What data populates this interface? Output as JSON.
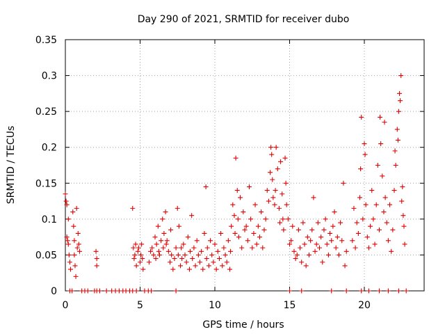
{
  "chart_data": {
    "type": "scatter",
    "title": "Day 290 of 2021, SRMTID for receiver dubo",
    "xlabel": "GPS time / hours",
    "ylabel": "SRMTID / TECUs",
    "xlim": [
      0,
      24
    ],
    "ylim": [
      0,
      0.35
    ],
    "xticks": [
      0,
      5,
      10,
      15,
      20
    ],
    "xtick_labels": [
      "0",
      "5",
      "10",
      "15",
      "20"
    ],
    "yticks": [
      0,
      0.05,
      0.1,
      0.15,
      0.2,
      0.25,
      0.3,
      0.35
    ],
    "ytick_labels": [
      "0",
      "0.05",
      "0.1",
      "0.15",
      "0.2",
      "0.25",
      "0.3",
      "0.35"
    ],
    "grid": true,
    "legend": "none",
    "marker": "+",
    "series": [
      {
        "name": "SRMTID",
        "color": "#e00000",
        "points": [
          [
            0.0,
            0.135
          ],
          [
            0.05,
            0.125
          ],
          [
            0.1,
            0.12
          ],
          [
            0.1,
            0.075
          ],
          [
            0.15,
            0.07
          ],
          [
            0.2,
            0.065
          ],
          [
            0.2,
            0.1
          ],
          [
            0.25,
            0.05
          ],
          [
            0.3,
            0.04
          ],
          [
            0.35,
            0.03
          ],
          [
            0.5,
            0.11
          ],
          [
            0.55,
            0.09
          ],
          [
            0.6,
            0.07
          ],
          [
            0.6,
            0.05
          ],
          [
            0.65,
            0.035
          ],
          [
            0.7,
            0.02
          ],
          [
            0.75,
            0.115
          ],
          [
            0.8,
            0.06
          ],
          [
            0.85,
            0.08
          ],
          [
            0.9,
            0.065
          ],
          [
            0.95,
            0.055
          ],
          [
            2.05,
            0.055
          ],
          [
            2.1,
            0.035
          ],
          [
            2.1,
            0.045
          ],
          [
            4.5,
            0.115
          ],
          [
            4.55,
            0.06
          ],
          [
            4.6,
            0.045
          ],
          [
            4.65,
            0.05
          ],
          [
            4.7,
            0.065
          ],
          [
            4.75,
            0.035
          ],
          [
            4.85,
            0.055
          ],
          [
            4.9,
            0.06
          ],
          [
            5.0,
            0.04
          ],
          [
            5.05,
            0.05
          ],
          [
            5.1,
            0.065
          ],
          [
            5.15,
            0.045
          ],
          [
            5.2,
            0.03
          ],
          [
            5.6,
            0.04
          ],
          [
            5.7,
            0.055
          ],
          [
            5.8,
            0.06
          ],
          [
            5.9,
            0.05
          ],
          [
            6.0,
            0.075
          ],
          [
            6.05,
            0.045
          ],
          [
            6.1,
            0.065
          ],
          [
            6.2,
            0.09
          ],
          [
            6.25,
            0.055
          ],
          [
            6.3,
            0.05
          ],
          [
            6.4,
            0.07
          ],
          [
            6.5,
            0.1
          ],
          [
            6.55,
            0.06
          ],
          [
            6.6,
            0.08
          ],
          [
            6.7,
            0.11
          ],
          [
            6.75,
            0.065
          ],
          [
            6.8,
            0.07
          ],
          [
            6.9,
            0.055
          ],
          [
            7.0,
            0.04
          ],
          [
            7.05,
            0.085
          ],
          [
            7.1,
            0.05
          ],
          [
            7.2,
            0.03
          ],
          [
            7.3,
            0.045
          ],
          [
            7.4,
            0.06
          ],
          [
            7.5,
            0.115
          ],
          [
            7.55,
            0.05
          ],
          [
            7.6,
            0.09
          ],
          [
            7.7,
            0.035
          ],
          [
            7.75,
            0.06
          ],
          [
            7.8,
            0.045
          ],
          [
            7.9,
            0.065
          ],
          [
            8.0,
            0.05
          ],
          [
            8.1,
            0.04
          ],
          [
            8.2,
            0.075
          ],
          [
            8.3,
            0.03
          ],
          [
            8.35,
            0.055
          ],
          [
            8.45,
            0.105
          ],
          [
            8.5,
            0.045
          ],
          [
            8.6,
            0.06
          ],
          [
            8.7,
            0.035
          ],
          [
            8.8,
            0.07
          ],
          [
            8.9,
            0.05
          ],
          [
            9.0,
            0.04
          ],
          [
            9.1,
            0.055
          ],
          [
            9.2,
            0.03
          ],
          [
            9.3,
            0.08
          ],
          [
            9.4,
            0.145
          ],
          [
            9.45,
            0.045
          ],
          [
            9.5,
            0.06
          ],
          [
            9.6,
            0.035
          ],
          [
            9.7,
            0.07
          ],
          [
            9.8,
            0.05
          ],
          [
            9.9,
            0.04
          ],
          [
            10.0,
            0.065
          ],
          [
            10.1,
            0.03
          ],
          [
            10.2,
            0.055
          ],
          [
            10.3,
            0.045
          ],
          [
            10.4,
            0.08
          ],
          [
            10.5,
            0.035
          ],
          [
            10.6,
            0.06
          ],
          [
            10.7,
            0.05
          ],
          [
            10.8,
            0.04
          ],
          [
            10.9,
            0.07
          ],
          [
            11.0,
            0.03
          ],
          [
            11.05,
            0.055
          ],
          [
            11.1,
            0.09
          ],
          [
            11.2,
            0.12
          ],
          [
            11.3,
            0.105
          ],
          [
            11.35,
            0.08
          ],
          [
            11.4,
            0.185
          ],
          [
            11.5,
            0.14
          ],
          [
            11.55,
            0.1
          ],
          [
            11.6,
            0.075
          ],
          [
            11.7,
            0.13
          ],
          [
            11.8,
            0.06
          ],
          [
            11.9,
            0.11
          ],
          [
            12.0,
            0.085
          ],
          [
            12.1,
            0.09
          ],
          [
            12.2,
            0.07
          ],
          [
            12.3,
            0.145
          ],
          [
            12.4,
            0.1
          ],
          [
            12.5,
            0.06
          ],
          [
            12.6,
            0.08
          ],
          [
            12.7,
            0.12
          ],
          [
            12.8,
            0.065
          ],
          [
            12.9,
            0.09
          ],
          [
            13.0,
            0.075
          ],
          [
            13.1,
            0.11
          ],
          [
            13.2,
            0.06
          ],
          [
            13.3,
            0.085
          ],
          [
            13.4,
            0.1
          ],
          [
            13.5,
            0.14
          ],
          [
            13.6,
            0.125
          ],
          [
            13.7,
            0.165
          ],
          [
            13.75,
            0.2
          ],
          [
            13.8,
            0.19
          ],
          [
            13.85,
            0.155
          ],
          [
            13.9,
            0.13
          ],
          [
            14.0,
            0.12
          ],
          [
            14.05,
            0.14
          ],
          [
            14.1,
            0.2
          ],
          [
            14.2,
            0.17
          ],
          [
            14.3,
            0.115
          ],
          [
            14.35,
            0.095
          ],
          [
            14.4,
            0.18
          ],
          [
            14.5,
            0.135
          ],
          [
            14.55,
            0.1
          ],
          [
            14.6,
            0.085
          ],
          [
            14.7,
            0.185
          ],
          [
            14.75,
            0.15
          ],
          [
            14.8,
            0.12
          ],
          [
            14.9,
            0.1
          ],
          [
            15.0,
            0.065
          ],
          [
            15.1,
            0.07
          ],
          [
            15.2,
            0.09
          ],
          [
            15.3,
            0.055
          ],
          [
            15.4,
            0.045
          ],
          [
            15.5,
            0.05
          ],
          [
            15.6,
            0.085
          ],
          [
            15.7,
            0.06
          ],
          [
            15.8,
            0.04
          ],
          [
            15.9,
            0.095
          ],
          [
            16.0,
            0.065
          ],
          [
            16.1,
            0.035
          ],
          [
            16.2,
            0.075
          ],
          [
            16.3,
            0.05
          ],
          [
            16.4,
            0.07
          ],
          [
            16.5,
            0.085
          ],
          [
            16.6,
            0.13
          ],
          [
            16.7,
            0.055
          ],
          [
            16.8,
            0.065
          ],
          [
            16.9,
            0.095
          ],
          [
            17.0,
            0.06
          ],
          [
            17.1,
            0.075
          ],
          [
            17.2,
            0.04
          ],
          [
            17.3,
            0.085
          ],
          [
            17.4,
            0.1
          ],
          [
            17.5,
            0.065
          ],
          [
            17.6,
            0.05
          ],
          [
            17.7,
            0.08
          ],
          [
            17.8,
            0.07
          ],
          [
            17.9,
            0.09
          ],
          [
            18.0,
            0.11
          ],
          [
            18.1,
            0.06
          ],
          [
            18.2,
            0.075
          ],
          [
            18.3,
            0.05
          ],
          [
            18.4,
            0.095
          ],
          [
            18.5,
            0.07
          ],
          [
            18.6,
            0.15
          ],
          [
            18.7,
            0.035
          ],
          [
            18.8,
            0.055
          ],
          [
            19.2,
            0.07
          ],
          [
            19.3,
            0.115
          ],
          [
            19.4,
            0.06
          ],
          [
            19.5,
            0.095
          ],
          [
            19.6,
            0.08
          ],
          [
            19.7,
            0.13
          ],
          [
            19.75,
            0.17
          ],
          [
            19.8,
            0.242
          ],
          [
            19.9,
            0.1
          ],
          [
            20.0,
            0.205
          ],
          [
            20.05,
            0.19
          ],
          [
            20.1,
            0.12
          ],
          [
            20.2,
            0.075
          ],
          [
            20.3,
            0.06
          ],
          [
            20.4,
            0.09
          ],
          [
            20.5,
            0.14
          ],
          [
            20.6,
            0.1
          ],
          [
            20.7,
            0.065
          ],
          [
            20.8,
            0.12
          ],
          [
            20.9,
            0.175
          ],
          [
            21.0,
            0.085
          ],
          [
            21.05,
            0.242
          ],
          [
            21.1,
            0.205
          ],
          [
            21.2,
            0.16
          ],
          [
            21.3,
            0.11
          ],
          [
            21.35,
            0.235
          ],
          [
            21.4,
            0.13
          ],
          [
            21.5,
            0.095
          ],
          [
            21.6,
            0.07
          ],
          [
            21.7,
            0.12
          ],
          [
            21.8,
            0.055
          ],
          [
            21.9,
            0.085
          ],
          [
            22.0,
            0.14
          ],
          [
            22.05,
            0.195
          ],
          [
            22.1,
            0.175
          ],
          [
            22.2,
            0.225
          ],
          [
            22.25,
            0.21
          ],
          [
            22.3,
            0.25
          ],
          [
            22.35,
            0.275
          ],
          [
            22.4,
            0.265
          ],
          [
            22.45,
            0.3
          ],
          [
            22.5,
            0.125
          ],
          [
            22.55,
            0.145
          ],
          [
            22.6,
            0.105
          ],
          [
            22.65,
            0.09
          ],
          [
            22.7,
            0.065
          ],
          [
            0.3,
            0
          ],
          [
            0.45,
            0
          ],
          [
            1.1,
            0
          ],
          [
            1.3,
            0
          ],
          [
            1.5,
            0
          ],
          [
            1.95,
            0
          ],
          [
            2.1,
            0
          ],
          [
            2.3,
            0
          ],
          [
            2.75,
            0
          ],
          [
            3.1,
            0
          ],
          [
            3.35,
            0
          ],
          [
            3.6,
            0
          ],
          [
            3.85,
            0
          ],
          [
            4.05,
            0
          ],
          [
            4.3,
            0
          ],
          [
            4.5,
            0
          ],
          [
            4.75,
            0
          ],
          [
            5.3,
            0
          ],
          [
            5.55,
            0
          ],
          [
            5.75,
            0
          ],
          [
            7.4,
            0
          ],
          [
            15.0,
            0
          ],
          [
            15.8,
            0
          ],
          [
            17.8,
            0
          ],
          [
            18.8,
            0
          ],
          [
            19.8,
            0
          ],
          [
            20.3,
            0
          ],
          [
            21.0,
            0
          ],
          [
            21.6,
            0
          ],
          [
            22.3,
            0
          ],
          [
            22.8,
            0
          ]
        ]
      }
    ]
  }
}
